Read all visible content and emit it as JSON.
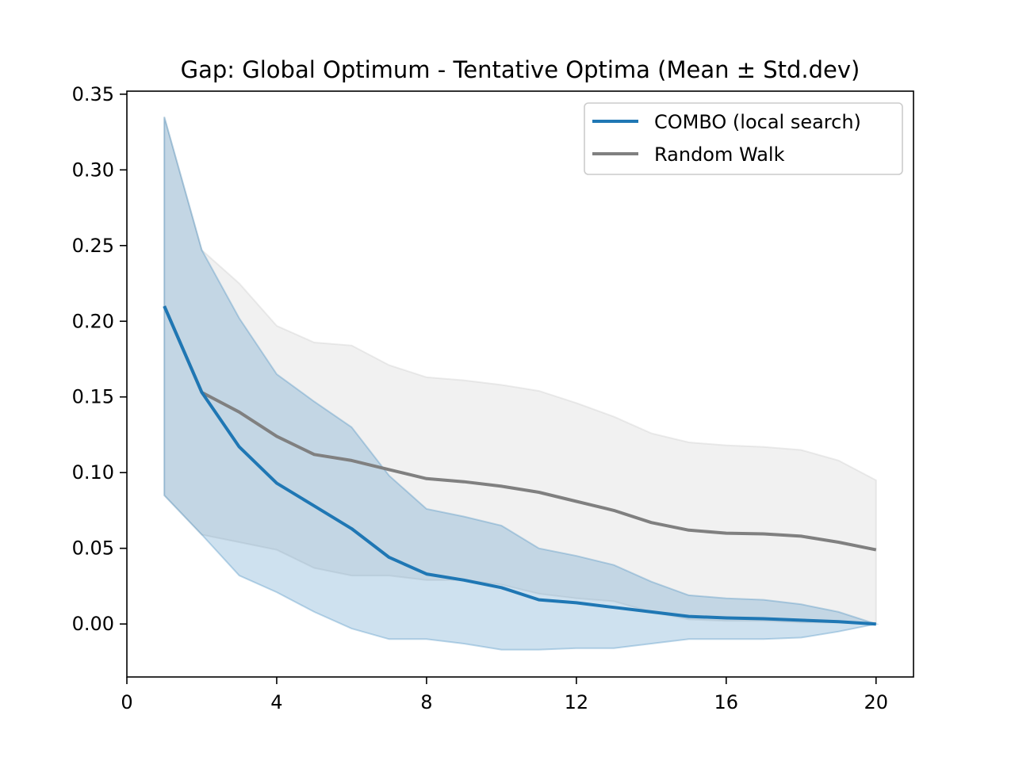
{
  "chart_data": {
    "type": "line",
    "title": "Gap: Global Optimum - Tentative Optima (Mean ± Std.dev)",
    "xlabel": "",
    "ylabel": "",
    "xlim": [
      0,
      21
    ],
    "ylim": [
      -0.035,
      0.352
    ],
    "xticks": [
      0,
      4,
      8,
      12,
      16,
      20
    ],
    "xtick_labels": [
      "0",
      "4",
      "8",
      "12",
      "16",
      "20"
    ],
    "yticks": [
      0.0,
      0.05,
      0.1,
      0.15,
      0.2,
      0.25,
      0.3,
      0.35
    ],
    "ytick_labels": [
      "0.00",
      "0.05",
      "0.10",
      "0.15",
      "0.20",
      "0.25",
      "0.30",
      "0.35"
    ],
    "grid": false,
    "legend_position": "top-right",
    "x": [
      1,
      2,
      3,
      4,
      5,
      6,
      7,
      8,
      9,
      10,
      11,
      12,
      13,
      14,
      15,
      16,
      17,
      18,
      19,
      20
    ],
    "series": [
      {
        "name": "COMBO (local search)",
        "color": "#1f77b4",
        "band_color": "#1f77b4",
        "mean": [
          0.21,
          0.153,
          0.117,
          0.093,
          0.078,
          0.063,
          0.044,
          0.033,
          0.029,
          0.024,
          0.016,
          0.014,
          0.011,
          0.008,
          0.005,
          0.004,
          0.0035,
          0.0025,
          0.0015,
          0.0
        ],
        "upper": [
          0.335,
          0.247,
          0.202,
          0.165,
          0.147,
          0.13,
          0.098,
          0.076,
          0.071,
          0.065,
          0.05,
          0.045,
          0.039,
          0.028,
          0.019,
          0.017,
          0.016,
          0.013,
          0.008,
          0.0
        ],
        "lower": [
          0.085,
          0.059,
          0.032,
          0.021,
          0.008,
          -0.003,
          -0.01,
          -0.01,
          -0.013,
          -0.017,
          -0.017,
          -0.016,
          -0.016,
          -0.013,
          -0.01,
          -0.01,
          -0.01,
          -0.009,
          -0.005,
          0.0
        ]
      },
      {
        "name": "Random Walk",
        "color": "#808080",
        "band_color": "#bfbfbf",
        "mean": [
          0.21,
          0.153,
          0.14,
          0.124,
          0.112,
          0.108,
          0.102,
          0.096,
          0.094,
          0.091,
          0.087,
          0.081,
          0.075,
          0.067,
          0.062,
          0.06,
          0.0595,
          0.058,
          0.054,
          0.049
        ],
        "upper": [
          0.335,
          0.247,
          0.225,
          0.197,
          0.186,
          0.184,
          0.171,
          0.163,
          0.161,
          0.158,
          0.154,
          0.146,
          0.137,
          0.126,
          0.12,
          0.118,
          0.117,
          0.115,
          0.108,
          0.095
        ],
        "lower": [
          0.085,
          0.059,
          0.054,
          0.049,
          0.037,
          0.032,
          0.032,
          0.029,
          0.029,
          0.026,
          0.02,
          0.017,
          0.015,
          0.008,
          0.003,
          0.002,
          0.002,
          0.001,
          0.001,
          0.001
        ]
      }
    ]
  }
}
